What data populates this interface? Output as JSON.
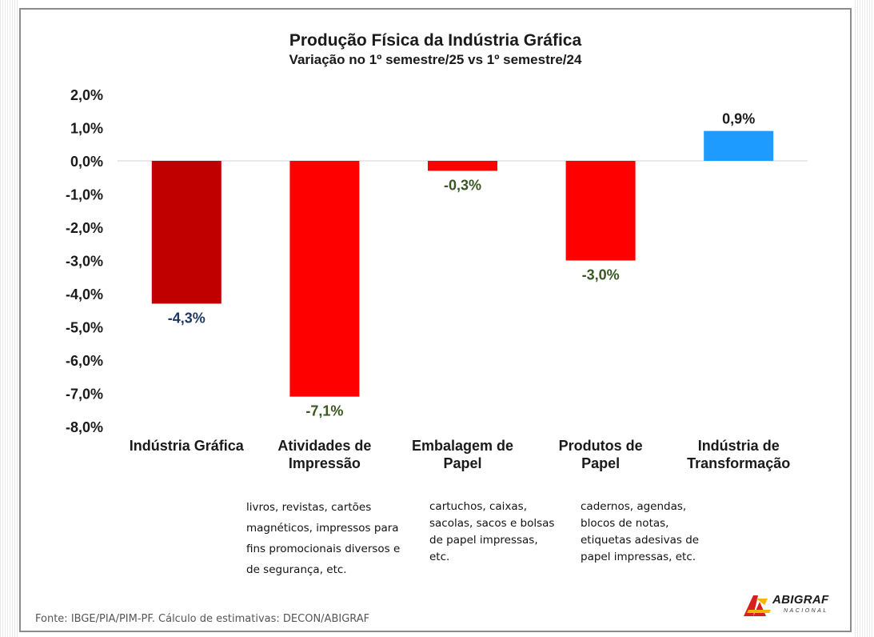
{
  "chart_data": {
    "type": "bar",
    "title": "Produção Física da Indústria Gráfica",
    "subtitle": "Variação no 1º semestre/25 vs 1º semestre/24",
    "ylim": [
      -8,
      2
    ],
    "yticks": [
      "2,0%",
      "1,0%",
      "0,0%",
      "-1,0%",
      "-2,0%",
      "-3,0%",
      "-4,0%",
      "-5,0%",
      "-6,0%",
      "-7,0%",
      "-8,0%"
    ],
    "categories": [
      [
        "Indústria Gráfica"
      ],
      [
        "Atividades de",
        "Impressão"
      ],
      [
        "Embalagem de",
        "Papel"
      ],
      [
        "Produtos de",
        "Papel"
      ],
      [
        "Indústria de",
        "Transformação"
      ]
    ],
    "values": [
      -4.3,
      -7.1,
      -0.3,
      -3.0,
      0.9
    ],
    "labels": [
      "-4,3%",
      "-7,1%",
      "-0,3%",
      "-3,0%",
      "0,9%"
    ],
    "bar_colors": [
      "#c00000",
      "#ff0000",
      "#ff0000",
      "#ff0000",
      "#1e9bff"
    ],
    "label_colors": [
      "#1f3864",
      "#385723",
      "#385723",
      "#385723",
      "#1a1a1a"
    ]
  },
  "descriptions": {
    "impressao": "livros, revistas, cartões\nmagnéticos, impressos para\nfins promocionais diversos e\nde segurança, etc.",
    "embalagem": "cartuchos, caixas,\nsacolas, sacos e bolsas\nde papel impressas,\netc.",
    "produtos": "cadernos, agendas,\nblocos de notas,\netiquetas adesivas de\npapel impressas, etc."
  },
  "source": "Fonte: IBGE/PIA/PIM-PF. Cálculo de estimativas: DECON/ABIGRAF",
  "logo": {
    "name": "ABIGRAF",
    "sub": "NACIONAL"
  }
}
